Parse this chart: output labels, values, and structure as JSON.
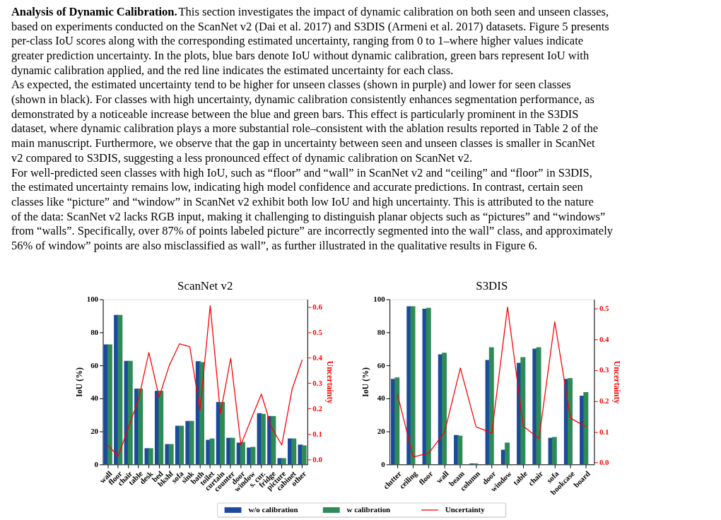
{
  "chart_data": [
    {
      "type": "bar",
      "title": "ScanNet v2",
      "ylabel": "IoU (%)",
      "y2label": "Uncertainty",
      "legend": "bottom",
      "annotations": [
        "Analysis of Dynamic Calibration.",
        "This section investigates the impact of dynamic calibration on both seen and unseen classes,",
        "based on experiments conducted on the ScanNet v2 (Dai et al. 2017) and S3DIS (Armeni et al. 2017) datasets. Figure 5 presents",
        "per-class IoU scores along with the corresponding estimated uncertainty, ranging from 0 to 1–where higher values indicate",
        "greater prediction uncertainty. In the plots, blue bars denote IoU without dynamic calibration, green bars represent IoU with",
        "dynamic calibration applied, and the red line indicates the estimated uncertainty for each class.",
        "As expected, the estimated uncertainty tend to be higher for unseen classes (shown in purple) and lower for seen classes",
        "(shown in black). For classes with high uncertainty, dynamic calibration consistently enhances segmentation performance, as",
        "demonstrated by a noticeable increase between the blue and green bars. This effect is particularly prominent in the S3DIS",
        "dataset, where dynamic calibration plays a more substantial role–consistent with the ablation results reported in Table 2 of the",
        "main manuscript. Furthermore, we observe that the gap in uncertainty between seen and unseen classes is smaller in ScanNet",
        "v2 compared to S3DIS, suggesting a less pronounced effect of dynamic calibration on ScanNet v2.",
        "For well-predicted seen classes with high IoU, such as “floor” and “wall” in ScanNet v2 and “ceiling” and “floor” in S3DIS,",
        "the estimated uncertainty remains low, indicating high model confidence and accurate predictions. In contrast, certain seen",
        "classes like “picture” and “window” in ScanNet v2 exhibit both low IoU and high uncertainty. This is attributed to the nature",
        "of the data: ScanNet v2 lacks RGB input, making it challenging to distinguish planar objects such as “pictures” and “windows”",
        "from “walls”. Specifically, over 87% of points labeled picture” are incorrectly segmented into the wall” class, and approximately",
        "56% of window” points are also misclassified as wall”, as further illustrated in the qualitative results in Figure 6."
      ],
      "categories": [
        "wall",
        "floor",
        "chair",
        "table",
        "desk",
        "bed",
        "bkshf",
        "sofa",
        "sink",
        "bath",
        "toilet",
        "curtain",
        "counter",
        "door",
        "window",
        "s. cur.",
        "fridge",
        "picture",
        "cabinet",
        "other"
      ],
      "ylim": [
        0,
        100
      ],
      "yticks": [
        0,
        20,
        40,
        60,
        80,
        100
      ],
      "y2lim": [
        -0.02,
        0.63
      ],
      "y2ticks": [
        {
          "value": 0,
          "label": "0.0"
        },
        0.1,
        0.2,
        0.3,
        0.4,
        0.5,
        0.6
      ],
      "series": [
        {
          "name": "w/o calibration",
          "color": "#1c4a9c",
          "values": [
            72.7,
            90.5,
            62.7,
            45.9,
            9.8,
            44.6,
            12.3,
            23.4,
            26.3,
            62.5,
            14.9,
            37.8,
            16.1,
            13.2,
            10.2,
            31.0,
            29.3,
            3.8,
            15.7,
            12.0
          ]
        },
        {
          "name": "w calibration",
          "color": "#2e8b57",
          "values": [
            72.7,
            90.5,
            62.7,
            45.9,
            9.8,
            44.6,
            12.3,
            23.4,
            26.3,
            62.0,
            15.7,
            37.8,
            16.1,
            13.6,
            10.6,
            30.6,
            29.3,
            3.8,
            15.7,
            11.5
          ]
        },
        {
          "name": "Uncertainty",
          "type": "line",
          "axis": "y2",
          "color": "#ff0000",
          "values": [
            0.056,
            0.012,
            0.125,
            0.238,
            0.421,
            0.245,
            0.37,
            0.455,
            0.444,
            0.194,
            0.605,
            0.18,
            0.398,
            0.057,
            0.158,
            0.257,
            0.125,
            0.056,
            0.275,
            0.392
          ]
        }
      ]
    },
    {
      "type": "bar",
      "title": "S3DIS",
      "ylabel": "IoU (%)",
      "y2label": "Uncertainty",
      "categories": [
        "clutter",
        "ceiling",
        "floor",
        "wall",
        "beam",
        "column",
        "door",
        "window",
        "table",
        "chair",
        "sofa",
        "bookcase",
        "board"
      ],
      "ylim": [
        0,
        100
      ],
      "yticks": [
        0,
        20,
        40,
        60,
        80,
        100
      ],
      "y2lim": [
        -0.006,
        0.53
      ],
      "y2ticks": [
        {
          "value": 0,
          "label": "0.0"
        },
        0.1,
        0.2,
        0.3,
        0.4,
        0.5
      ],
      "series": [
        {
          "color": "#1c4a9c",
          "values": [
            51.8,
            95.8,
            94.3,
            66.7,
            17.8,
            0.6,
            63.3,
            8.9,
            61.6,
            70.1,
            16.1,
            51.8,
            41.6
          ]
        },
        {
          "color": "#2e8b57",
          "values": [
            52.7,
            95.8,
            94.8,
            67.6,
            17.4,
            0.6,
            71.0,
            13.2,
            65.0,
            71.0,
            16.6,
            52.3,
            43.8
          ]
        },
        {
          "type": "line",
          "axis": "y2",
          "color": "#ff0000",
          "values": [
            0.222,
            0.018,
            0.031,
            0.099,
            0.307,
            0.116,
            0.096,
            0.505,
            0.118,
            0.078,
            0.457,
            0.144,
            0.116
          ]
        }
      ]
    }
  ]
}
